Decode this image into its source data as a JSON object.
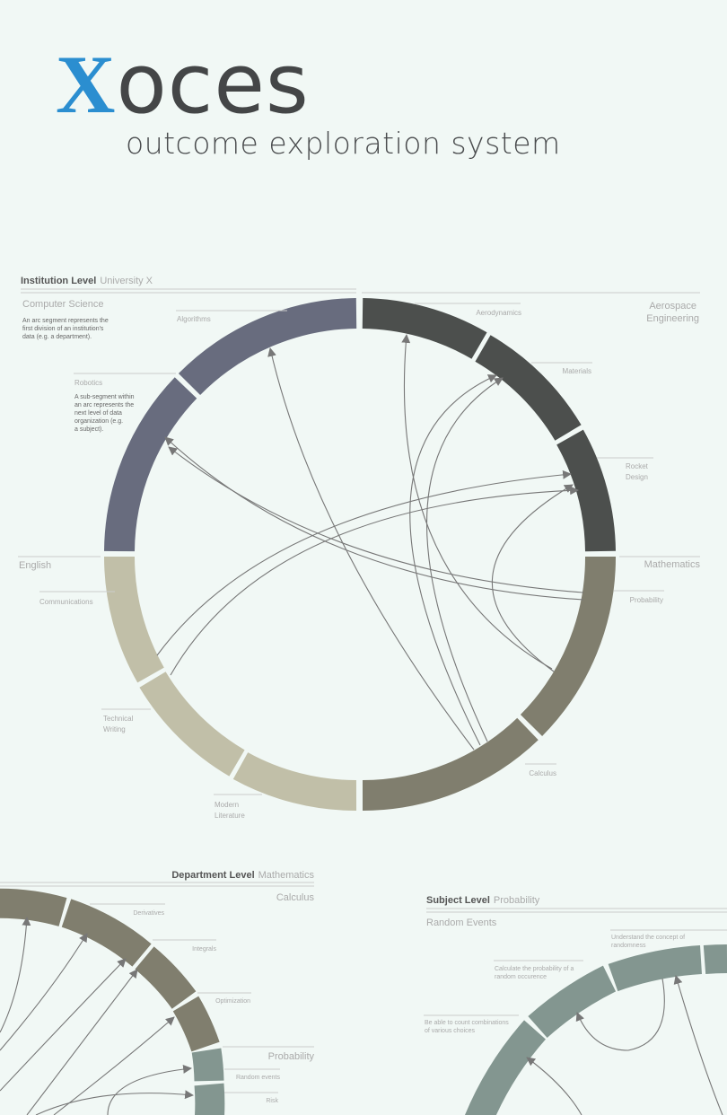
{
  "header": {
    "logo_letter": "X",
    "logo_rest": "oces",
    "subtitle": "outcome exploration system"
  },
  "institution": {
    "heading": "Institution Level",
    "subheading": "University X",
    "dept_cs": "Computer Science",
    "arc_note": [
      "An arc segment represents the",
      "first division of an institution's",
      "data (e.g. a department)."
    ],
    "algorithms": "Algorithms",
    "robotics": "Robotics",
    "sub_note": [
      "A sub-segment within",
      "an arc represents the",
      "next level of data",
      "organization (e.g.",
      "a subject)."
    ],
    "aerospace": [
      "Aerospace",
      "Engineering"
    ],
    "aerodynamics": "Aerodynamics",
    "materials": "Materials",
    "rocket": [
      "Rocket",
      "Design"
    ],
    "english": "English",
    "communications": "Communications",
    "mathematics": "Mathematics",
    "probability": "Probability",
    "technical": [
      "Technical",
      "Writing"
    ],
    "calculus": "Calculus",
    "modern": [
      "Modern",
      "Literature"
    ]
  },
  "department": {
    "heading": "Department Level",
    "subheading": "Mathematics",
    "calculus": "Calculus",
    "derivatives": "Derivatives",
    "integrals": "Integrals",
    "optimization": "Optimization",
    "probability": "Probability",
    "random_events": "Random events",
    "risk": "Risk"
  },
  "subject": {
    "heading": "Subject Level",
    "subheading": "Probability",
    "random_events": "Random Events",
    "concept": [
      "Understand the concept of",
      "randomness"
    ],
    "calculate": [
      "Calculate the probability of a",
      "random occurence"
    ],
    "count": [
      "Be able to count combinations",
      "of various choices"
    ]
  },
  "colors": {
    "computer_science": "#686c7e",
    "aerospace": "#4c4f4d",
    "mathematics": "#807e6e",
    "english": "#c1bfa8",
    "subject": "#839690",
    "logo_accent": "#2b8ed0"
  }
}
